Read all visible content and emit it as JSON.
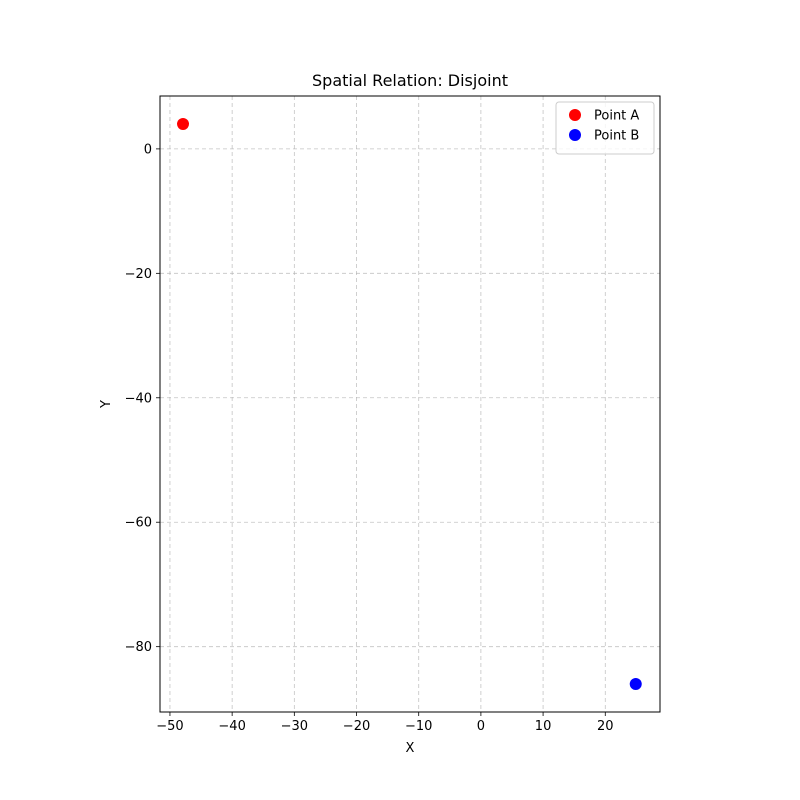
{
  "chart_data": {
    "type": "scatter",
    "title": "Spatial Relation: Disjoint",
    "xlabel": "X",
    "ylabel": "Y",
    "xlim": [
      -51.6,
      28.8
    ],
    "ylim": [
      -90.5,
      8.5
    ],
    "x_ticks": [
      -50,
      -40,
      -30,
      -20,
      -10,
      0,
      10,
      20
    ],
    "y_ticks": [
      0,
      -20,
      -40,
      -60,
      -80
    ],
    "grid": true,
    "legend_placement": "top-right",
    "series": [
      {
        "name": "Point A",
        "color": "#ff0000",
        "x": [
          -47.9
        ],
        "y": [
          4.0
        ]
      },
      {
        "name": "Point B",
        "color": "#0000ff",
        "x": [
          24.9
        ],
        "y": [
          -86.0
        ]
      }
    ]
  }
}
